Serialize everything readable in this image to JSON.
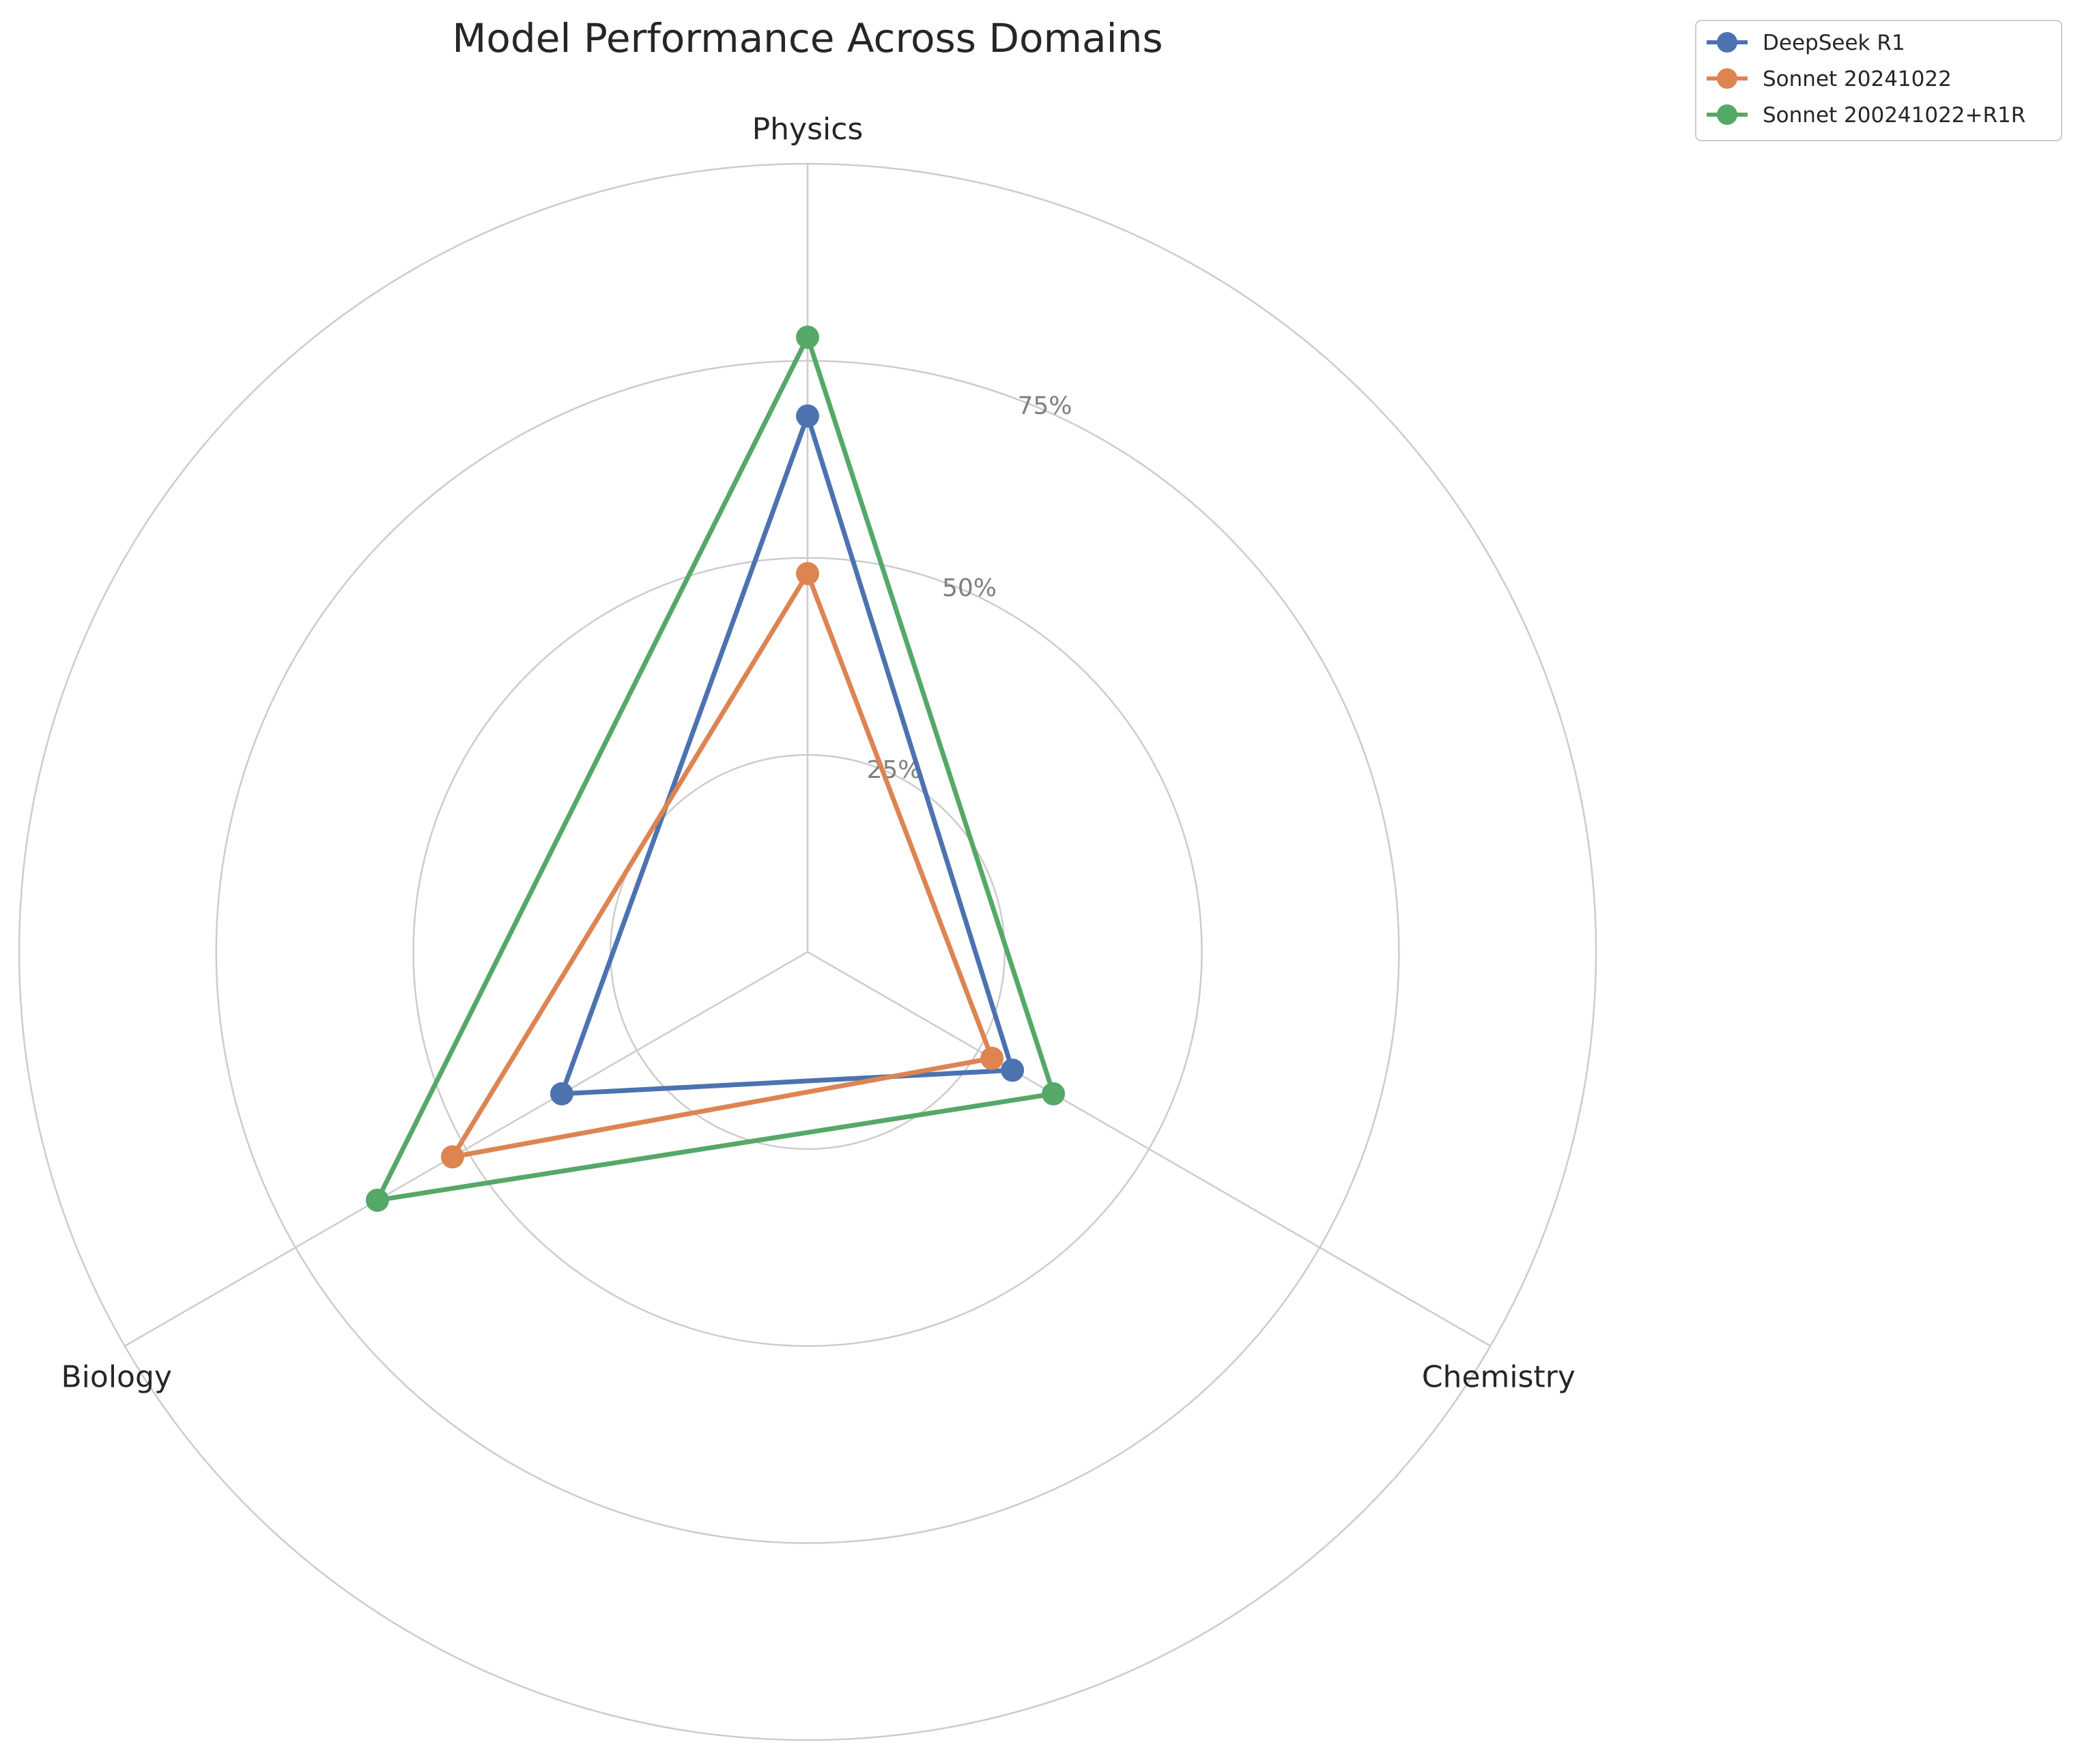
{
  "chart_data": {
    "type": "radar",
    "title": "Model Performance Across Domains",
    "axes": [
      "Physics",
      "Chemistry",
      "Biology"
    ],
    "rlim": [
      0,
      100
    ],
    "rticks": [
      25,
      50,
      75,
      100
    ],
    "rtick_labels": [
      "25%",
      "50%",
      "75%"
    ],
    "grid": true,
    "legend_position": "top-right",
    "series": [
      {
        "name": "DeepSeek R1",
        "color": "#4c72b0",
        "values": [
          68,
          30,
          36
        ]
      },
      {
        "name": "Sonnet 20241022",
        "color": "#dd8452",
        "values": [
          48,
          27,
          52
        ]
      },
      {
        "name": "Sonnet 200241022+R1R",
        "color": "#55a868",
        "values": [
          78,
          36,
          63
        ]
      }
    ]
  }
}
